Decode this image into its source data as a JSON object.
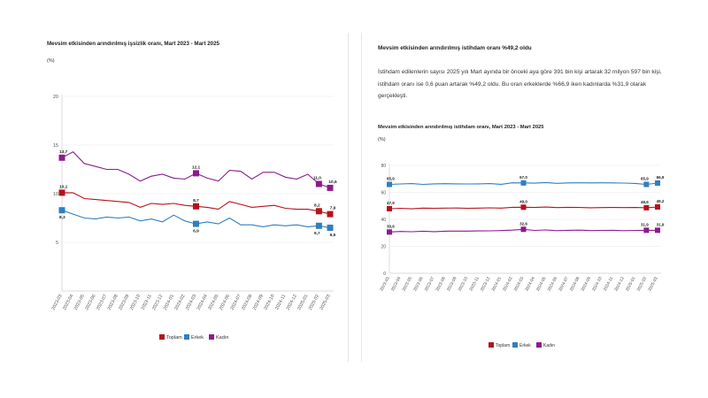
{
  "left": {
    "title": "Mevsim etkisinden arındırılmış işsizlik oranı, Mart 2023 - Mart 2025",
    "unit": "(%)"
  },
  "right": {
    "heading": "Mevsim etkisinden arındırılmış istihdam oranı %49,2 oldu",
    "paragraph": "İstihdam edilenlerin sayısı 2025 yılı Mart ayında bir önceki aya göre 391 bin kişi artarak 32 milyon 597 bin kişi, istihdam oranı ise 0,6 puan artarak %49,2 oldu. Bu oran erkeklerde %66,9 iken kadınlarda %31,9 olarak gerçekleşti.",
    "title": "Mevsim etkisinden arındırılmış istihdam oranı, Mart 2023 - Mart 2025",
    "unit": "(%)"
  },
  "chart_data": [
    {
      "type": "line",
      "title": "Mevsim etkisinden arındırılmış işsizlik oranı, Mart 2023 - Mart 2025",
      "ylabel": "(%)",
      "ylim": [
        0,
        20
      ],
      "yticks": [
        "5",
        "10",
        "15",
        "20"
      ],
      "categories": [
        "2023-03",
        "2023-04",
        "2023-05",
        "2023-06",
        "2023-07",
        "2023-08",
        "2023-09",
        "2023-10",
        "2023-11",
        "2023-12",
        "2024-01",
        "2024-02",
        "2024-03",
        "2024-04",
        "2024-05",
        "2024-06",
        "2024-07",
        "2024-08",
        "2024-09",
        "2024-10",
        "2024-11",
        "2024-12",
        "2025-01",
        "2025-02",
        "2025-03"
      ],
      "series": [
        {
          "name": "Toplam",
          "color": "#b5121b",
          "values": [
            10.1,
            10.1,
            9.5,
            9.4,
            9.3,
            9.2,
            9.1,
            8.6,
            9.0,
            8.9,
            9.0,
            8.8,
            8.7,
            8.6,
            8.4,
            9.2,
            8.9,
            8.6,
            8.7,
            8.8,
            8.5,
            8.4,
            8.4,
            8.2,
            7.9
          ]
        },
        {
          "name": "Erkek",
          "color": "#2f7fc1",
          "values": [
            8.3,
            7.9,
            7.5,
            7.4,
            7.6,
            7.5,
            7.6,
            7.2,
            7.4,
            7.1,
            7.8,
            7.2,
            6.9,
            7.1,
            6.9,
            7.5,
            6.8,
            6.8,
            6.6,
            6.8,
            6.7,
            6.8,
            6.6,
            6.7,
            6.5
          ]
        },
        {
          "name": "Kadın",
          "color": "#8e1a8e",
          "values": [
            13.7,
            14.3,
            13.1,
            12.8,
            12.5,
            12.5,
            12.0,
            11.3,
            11.8,
            12.0,
            11.6,
            11.5,
            12.1,
            11.6,
            11.3,
            12.4,
            12.3,
            11.5,
            12.2,
            12.2,
            11.7,
            11.5,
            12.0,
            11.0,
            10.6
          ]
        }
      ],
      "labels": [
        {
          "series": "Toplam",
          "index": 0,
          "text": "10,1"
        },
        {
          "series": "Erkek",
          "index": 0,
          "text": "8,3"
        },
        {
          "series": "Kadın",
          "index": 0,
          "text": "13,7"
        },
        {
          "series": "Toplam",
          "index": 12,
          "text": "8,7"
        },
        {
          "series": "Erkek",
          "index": 12,
          "text": "6,9"
        },
        {
          "series": "Kadın",
          "index": 12,
          "text": "12,1"
        },
        {
          "series": "Toplam",
          "index": 23,
          "text": "8,2"
        },
        {
          "series": "Erkek",
          "index": 23,
          "text": "6,7"
        },
        {
          "series": "Kadın",
          "index": 23,
          "text": "11,0"
        },
        {
          "series": "Toplam",
          "index": 24,
          "text": "7,9"
        },
        {
          "series": "Erkek",
          "index": 24,
          "text": "6,5"
        },
        {
          "series": "Kadın",
          "index": 24,
          "text": "10,6"
        }
      ],
      "legend": [
        "Toplam",
        "Erkek",
        "Kadın"
      ],
      "legend_position": "bottom-center"
    },
    {
      "type": "line",
      "title": "Mevsim etkisinden arındırılmış istihdam oranı, Mart 2023 - Mart 2025",
      "ylabel": "(%)",
      "ylim": [
        0,
        80
      ],
      "yticks": [
        "0",
        "20",
        "40",
        "60",
        "80"
      ],
      "categories": [
        "2023-03",
        "2023-04",
        "2023-05",
        "2023-06",
        "2023-07",
        "2023-08",
        "2023-09",
        "2023-10",
        "2023-11",
        "2023-12",
        "2024-01",
        "2024-02",
        "2024-03",
        "2024-04",
        "2024-05",
        "2024-06",
        "2024-07",
        "2024-08",
        "2024-09",
        "2024-10",
        "2024-11",
        "2024-12",
        "2025-01",
        "2025-02",
        "2025-03"
      ],
      "series": [
        {
          "name": "Toplam",
          "color": "#b5121b",
          "values": [
            47.9,
            48.2,
            47.8,
            48.3,
            48.2,
            48.3,
            48.4,
            48.2,
            48.3,
            48.5,
            48.3,
            48.9,
            49.0,
            48.8,
            49.1,
            48.7,
            48.9,
            48.8,
            48.6,
            48.7,
            48.8,
            48.7,
            48.8,
            48.6,
            49.2
          ]
        },
        {
          "name": "Erkek",
          "color": "#2f7fc1",
          "values": [
            65.9,
            66.2,
            66.5,
            65.9,
            66.3,
            66.4,
            66.3,
            66.2,
            66.3,
            66.5,
            66.0,
            67.1,
            67.0,
            66.8,
            67.3,
            66.7,
            67.0,
            67.1,
            67.0,
            67.1,
            67.0,
            66.9,
            66.6,
            65.9,
            66.9
          ]
        },
        {
          "name": "Kadın",
          "color": "#8e1a8e",
          "values": [
            30.6,
            31.0,
            30.8,
            31.2,
            30.9,
            31.2,
            31.3,
            31.3,
            31.4,
            31.5,
            31.7,
            32.0,
            32.6,
            31.8,
            32.1,
            31.6,
            31.9,
            32.0,
            31.7,
            31.8,
            31.9,
            31.6,
            31.8,
            31.9,
            31.9
          ]
        }
      ],
      "labels": [
        {
          "series": "Toplam",
          "index": 0,
          "text": "47,9"
        },
        {
          "series": "Erkek",
          "index": 0,
          "text": "65,9"
        },
        {
          "series": "Kadın",
          "index": 0,
          "text": "30,6"
        },
        {
          "series": "Toplam",
          "index": 12,
          "text": "49,0"
        },
        {
          "series": "Erkek",
          "index": 12,
          "text": "67,0"
        },
        {
          "series": "Kadın",
          "index": 12,
          "text": "32,6"
        },
        {
          "series": "Toplam",
          "index": 23,
          "text": "48,6"
        },
        {
          "series": "Erkek",
          "index": 23,
          "text": "65,9"
        },
        {
          "series": "Kadın",
          "index": 23,
          "text": "31,9"
        },
        {
          "series": "Toplam",
          "index": 24,
          "text": "49,2"
        },
        {
          "series": "Erkek",
          "index": 24,
          "text": "66,9"
        },
        {
          "series": "Kadın",
          "index": 24,
          "text": "31,9"
        }
      ],
      "legend": [
        "Toplam",
        "Erkek",
        "Kadın"
      ],
      "legend_position": "bottom-center"
    }
  ]
}
